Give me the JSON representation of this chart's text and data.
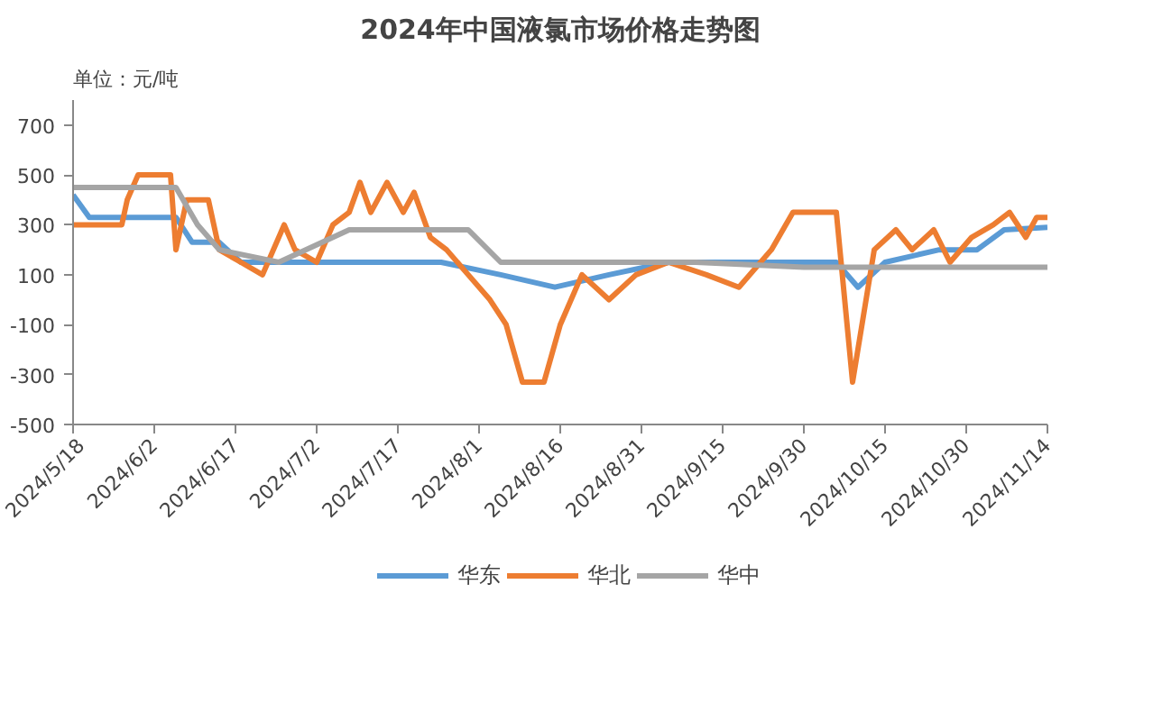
{
  "chart_data": {
    "type": "line",
    "title": "2024年中国液氯市场价格走势图",
    "ylabel": "单位：元/吨",
    "xlim": [
      "2024-05-18",
      "2024-11-14"
    ],
    "xticks": [
      {
        "value": "2024-05-18",
        "label": "2024/5/18"
      },
      {
        "value": "2024-06-02",
        "label": "2024/6/2"
      },
      {
        "value": "2024-06-17",
        "label": "2024/6/17"
      },
      {
        "value": "2024-07-02",
        "label": "2024/7/2"
      },
      {
        "value": "2024-07-17",
        "label": "2024/7/17"
      },
      {
        "value": "2024-08-01",
        "label": "2024/8/1"
      },
      {
        "value": "2024-08-16",
        "label": "2024/8/16"
      },
      {
        "value": "2024-08-31",
        "label": "2024/8/31"
      },
      {
        "value": "2024-09-15",
        "label": "2024/9/15"
      },
      {
        "value": "2024-09-30",
        "label": "2024/9/30"
      },
      {
        "value": "2024-10-15",
        "label": "2024/10/15"
      },
      {
        "value": "2024-10-30",
        "label": "2024/10/30"
      },
      {
        "value": "2024-11-14",
        "label": "2024/11/14"
      }
    ],
    "ylim": [
      -500,
      800
    ],
    "yticks": [
      -500,
      -300,
      -100,
      100,
      300,
      500,
      700
    ],
    "grid": false,
    "legend": "bottom",
    "marker": "none",
    "line_style": "solid",
    "series": [
      {
        "name": "华东",
        "color": "#5b9bd5",
        "x": [
          "2024-05-18",
          "2024-05-21",
          "2024-06-06",
          "2024-06-09",
          "2024-06-14",
          "2024-06-18",
          "2024-06-25",
          "2024-07-05",
          "2024-07-15",
          "2024-07-25",
          "2024-08-05",
          "2024-08-15",
          "2024-08-25",
          "2024-09-05",
          "2024-09-15",
          "2024-09-25",
          "2024-10-06",
          "2024-10-10",
          "2024-10-15",
          "2024-10-25",
          "2024-11-01",
          "2024-11-06",
          "2024-11-14"
        ],
        "values": [
          420,
          330,
          330,
          230,
          230,
          150,
          150,
          150,
          150,
          150,
          100,
          50,
          100,
          150,
          150,
          150,
          150,
          50,
          150,
          200,
          200,
          280,
          290
        ]
      },
      {
        "name": "华北",
        "color": "#ed7d31",
        "x": [
          "2024-05-18",
          "2024-05-27",
          "2024-05-28",
          "2024-05-30",
          "2024-06-05",
          "2024-06-06",
          "2024-06-08",
          "2024-06-12",
          "2024-06-14",
          "2024-06-18",
          "2024-06-22",
          "2024-06-26",
          "2024-06-28",
          "2024-07-02",
          "2024-07-05",
          "2024-07-08",
          "2024-07-10",
          "2024-07-12",
          "2024-07-15",
          "2024-07-18",
          "2024-07-20",
          "2024-07-23",
          "2024-07-26",
          "2024-07-30",
          "2024-08-03",
          "2024-08-06",
          "2024-08-09",
          "2024-08-13",
          "2024-08-16",
          "2024-08-20",
          "2024-08-25",
          "2024-08-30",
          "2024-09-05",
          "2024-09-12",
          "2024-09-18",
          "2024-09-24",
          "2024-09-28",
          "2024-10-06",
          "2024-10-09",
          "2024-10-13",
          "2024-10-17",
          "2024-10-20",
          "2024-10-24",
          "2024-10-27",
          "2024-10-31",
          "2024-11-04",
          "2024-11-07",
          "2024-11-10",
          "2024-11-12",
          "2024-11-14"
        ],
        "values": [
          300,
          300,
          400,
          500,
          500,
          200,
          400,
          400,
          200,
          150,
          100,
          300,
          200,
          150,
          300,
          350,
          470,
          350,
          470,
          350,
          430,
          250,
          200,
          100,
          0,
          -100,
          -330,
          -330,
          -100,
          100,
          0,
          100,
          150,
          100,
          50,
          200,
          350,
          350,
          -330,
          200,
          280,
          200,
          280,
          150,
          250,
          300,
          350,
          250,
          330,
          330
        ]
      },
      {
        "name": "华中",
        "color": "#a5a5a5",
        "x": [
          "2024-05-18",
          "2024-06-06",
          "2024-06-10",
          "2024-06-14",
          "2024-06-25",
          "2024-07-08",
          "2024-07-30",
          "2024-08-05",
          "2024-08-20",
          "2024-09-10",
          "2024-09-30",
          "2024-10-20",
          "2024-11-14"
        ],
        "values": [
          450,
          450,
          300,
          200,
          150,
          280,
          280,
          150,
          150,
          150,
          130,
          130,
          130
        ]
      }
    ]
  }
}
